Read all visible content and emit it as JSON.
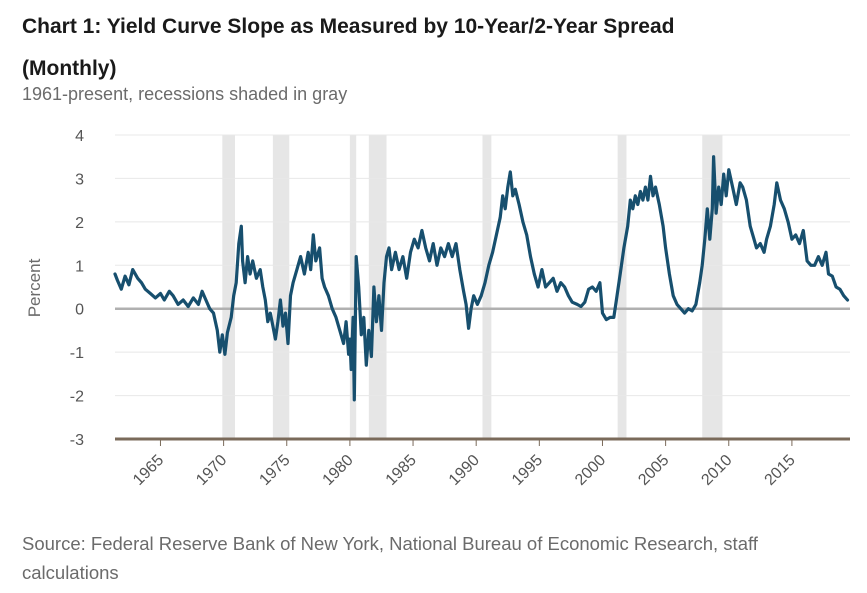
{
  "chart_data": {
    "type": "line",
    "title": "Chart 1: Yield Curve Slope as Measured by 10-Year/2-Year Spread (Monthly)",
    "subtitle": "1961-present, recessions shaded in gray",
    "xlabel": "",
    "ylabel": "Percent",
    "xlim": [
      1961.4,
      2019.6
    ],
    "ylim": [
      -3,
      4
    ],
    "yticks": [
      4,
      3,
      2,
      1,
      0,
      -1,
      -2,
      -3
    ],
    "xticks": [
      1965,
      1970,
      1975,
      1980,
      1985,
      1990,
      1995,
      2000,
      2005,
      2010,
      2015
    ],
    "recessions": [
      [
        1969.9,
        1970.9
      ],
      [
        1973.9,
        1975.2
      ],
      [
        1980.0,
        1980.5
      ],
      [
        1981.5,
        1982.9
      ],
      [
        1990.5,
        1991.2
      ],
      [
        2001.2,
        2001.9
      ],
      [
        2007.9,
        2009.5
      ]
    ],
    "colors": {
      "line": "#174f6e",
      "recession": "#e6e6e6",
      "zero": "#b0b0b0",
      "bottom": "#7a6a5a",
      "grid": "#e8e8e8"
    },
    "series": [
      {
        "name": "10-Year/2-Year Spread",
        "points": [
          [
            1961.4,
            0.8
          ],
          [
            1961.6,
            0.65
          ],
          [
            1961.9,
            0.45
          ],
          [
            1962.2,
            0.75
          ],
          [
            1962.5,
            0.55
          ],
          [
            1962.8,
            0.9
          ],
          [
            1963.2,
            0.7
          ],
          [
            1963.5,
            0.6
          ],
          [
            1963.8,
            0.45
          ],
          [
            1964.2,
            0.35
          ],
          [
            1964.6,
            0.25
          ],
          [
            1965.0,
            0.35
          ],
          [
            1965.3,
            0.2
          ],
          [
            1965.7,
            0.4
          ],
          [
            1966.0,
            0.3
          ],
          [
            1966.4,
            0.1
          ],
          [
            1966.8,
            0.2
          ],
          [
            1967.2,
            0.05
          ],
          [
            1967.6,
            0.25
          ],
          [
            1968.0,
            0.1
          ],
          [
            1968.3,
            0.4
          ],
          [
            1968.6,
            0.2
          ],
          [
            1968.9,
            0.0
          ],
          [
            1969.2,
            -0.1
          ],
          [
            1969.5,
            -0.5
          ],
          [
            1969.7,
            -1.0
          ],
          [
            1969.9,
            -0.6
          ],
          [
            1970.1,
            -1.05
          ],
          [
            1970.3,
            -0.55
          ],
          [
            1970.6,
            -0.2
          ],
          [
            1970.8,
            0.3
          ],
          [
            1971.0,
            0.6
          ],
          [
            1971.2,
            1.5
          ],
          [
            1971.4,
            1.9
          ],
          [
            1971.5,
            1.1
          ],
          [
            1971.7,
            0.6
          ],
          [
            1971.9,
            1.2
          ],
          [
            1972.1,
            0.8
          ],
          [
            1972.3,
            1.1
          ],
          [
            1972.6,
            0.7
          ],
          [
            1972.9,
            0.9
          ],
          [
            1973.1,
            0.5
          ],
          [
            1973.3,
            0.2
          ],
          [
            1973.5,
            -0.3
          ],
          [
            1973.7,
            -0.1
          ],
          [
            1973.9,
            -0.4
          ],
          [
            1974.1,
            -0.7
          ],
          [
            1974.3,
            -0.3
          ],
          [
            1974.5,
            0.2
          ],
          [
            1974.7,
            -0.4
          ],
          [
            1974.9,
            -0.1
          ],
          [
            1975.1,
            -0.8
          ],
          [
            1975.3,
            0.3
          ],
          [
            1975.5,
            0.6
          ],
          [
            1975.8,
            0.9
          ],
          [
            1976.1,
            1.2
          ],
          [
            1976.4,
            0.8
          ],
          [
            1976.7,
            1.3
          ],
          [
            1976.9,
            0.9
          ],
          [
            1977.1,
            1.7
          ],
          [
            1977.3,
            1.1
          ],
          [
            1977.6,
            1.4
          ],
          [
            1977.8,
            0.7
          ],
          [
            1978.0,
            0.5
          ],
          [
            1978.3,
            0.3
          ],
          [
            1978.6,
            0.0
          ],
          [
            1978.9,
            -0.2
          ],
          [
            1979.2,
            -0.5
          ],
          [
            1979.5,
            -0.8
          ],
          [
            1979.7,
            -0.3
          ],
          [
            1979.9,
            -1.05
          ],
          [
            1980.0,
            -0.7
          ],
          [
            1980.1,
            -1.4
          ],
          [
            1980.25,
            -0.2
          ],
          [
            1980.35,
            -2.1
          ],
          [
            1980.5,
            1.2
          ],
          [
            1980.7,
            0.5
          ],
          [
            1980.9,
            -0.6
          ],
          [
            1981.1,
            -0.2
          ],
          [
            1981.3,
            -1.3
          ],
          [
            1981.5,
            -0.5
          ],
          [
            1981.7,
            -1.1
          ],
          [
            1981.9,
            0.5
          ],
          [
            1982.1,
            -0.3
          ],
          [
            1982.3,
            0.3
          ],
          [
            1982.5,
            -0.5
          ],
          [
            1982.7,
            0.6
          ],
          [
            1982.9,
            1.2
          ],
          [
            1983.1,
            1.4
          ],
          [
            1983.3,
            0.9
          ],
          [
            1983.6,
            1.3
          ],
          [
            1983.9,
            0.9
          ],
          [
            1984.2,
            1.2
          ],
          [
            1984.5,
            0.7
          ],
          [
            1984.8,
            1.3
          ],
          [
            1985.1,
            1.6
          ],
          [
            1985.4,
            1.4
          ],
          [
            1985.7,
            1.8
          ],
          [
            1986.0,
            1.4
          ],
          [
            1986.3,
            1.1
          ],
          [
            1986.6,
            1.5
          ],
          [
            1986.9,
            1.0
          ],
          [
            1987.2,
            1.4
          ],
          [
            1987.5,
            1.2
          ],
          [
            1987.8,
            1.5
          ],
          [
            1988.1,
            1.2
          ],
          [
            1988.4,
            1.5
          ],
          [
            1988.7,
            0.9
          ],
          [
            1989.0,
            0.4
          ],
          [
            1989.2,
            0.1
          ],
          [
            1989.4,
            -0.45
          ],
          [
            1989.6,
            0.0
          ],
          [
            1989.8,
            0.3
          ],
          [
            1990.1,
            0.1
          ],
          [
            1990.4,
            0.3
          ],
          [
            1990.7,
            0.6
          ],
          [
            1991.0,
            1.0
          ],
          [
            1991.3,
            1.3
          ],
          [
            1991.6,
            1.7
          ],
          [
            1991.9,
            2.1
          ],
          [
            1992.1,
            2.6
          ],
          [
            1992.3,
            2.3
          ],
          [
            1992.5,
            2.8
          ],
          [
            1992.7,
            3.15
          ],
          [
            1992.9,
            2.6
          ],
          [
            1993.1,
            2.75
          ],
          [
            1993.4,
            2.4
          ],
          [
            1993.7,
            2.0
          ],
          [
            1994.0,
            1.7
          ],
          [
            1994.3,
            1.2
          ],
          [
            1994.6,
            0.8
          ],
          [
            1994.9,
            0.5
          ],
          [
            1995.2,
            0.9
          ],
          [
            1995.5,
            0.5
          ],
          [
            1995.8,
            0.6
          ],
          [
            1996.1,
            0.7
          ],
          [
            1996.4,
            0.4
          ],
          [
            1996.7,
            0.6
          ],
          [
            1997.0,
            0.5
          ],
          [
            1997.3,
            0.3
          ],
          [
            1997.6,
            0.15
          ],
          [
            1998.0,
            0.1
          ],
          [
            1998.3,
            0.05
          ],
          [
            1998.6,
            0.15
          ],
          [
            1998.9,
            0.45
          ],
          [
            1999.2,
            0.5
          ],
          [
            1999.5,
            0.4
          ],
          [
            1999.8,
            0.6
          ],
          [
            2000.0,
            -0.1
          ],
          [
            2000.3,
            -0.25
          ],
          [
            2000.6,
            -0.2
          ],
          [
            2000.9,
            -0.2
          ],
          [
            2001.1,
            0.2
          ],
          [
            2001.4,
            0.8
          ],
          [
            2001.7,
            1.4
          ],
          [
            2002.0,
            1.9
          ],
          [
            2002.2,
            2.5
          ],
          [
            2002.4,
            2.3
          ],
          [
            2002.6,
            2.6
          ],
          [
            2002.8,
            2.4
          ],
          [
            2003.0,
            2.7
          ],
          [
            2003.2,
            2.5
          ],
          [
            2003.4,
            2.8
          ],
          [
            2003.6,
            2.5
          ],
          [
            2003.8,
            3.05
          ],
          [
            2004.0,
            2.6
          ],
          [
            2004.2,
            2.8
          ],
          [
            2004.5,
            2.4
          ],
          [
            2004.8,
            1.9
          ],
          [
            2005.0,
            1.4
          ],
          [
            2005.3,
            0.8
          ],
          [
            2005.6,
            0.3
          ],
          [
            2005.9,
            0.1
          ],
          [
            2006.2,
            0.0
          ],
          [
            2006.5,
            -0.1
          ],
          [
            2006.8,
            0.0
          ],
          [
            2007.1,
            -0.05
          ],
          [
            2007.4,
            0.1
          ],
          [
            2007.7,
            0.6
          ],
          [
            2007.9,
            1.0
          ],
          [
            2008.1,
            1.6
          ],
          [
            2008.3,
            2.3
          ],
          [
            2008.5,
            1.6
          ],
          [
            2008.7,
            2.3
          ],
          [
            2008.8,
            3.5
          ],
          [
            2009.0,
            2.2
          ],
          [
            2009.2,
            2.8
          ],
          [
            2009.4,
            2.4
          ],
          [
            2009.6,
            3.1
          ],
          [
            2009.8,
            2.6
          ],
          [
            2010.0,
            3.2
          ],
          [
            2010.3,
            2.8
          ],
          [
            2010.6,
            2.4
          ],
          [
            2010.9,
            2.9
          ],
          [
            2011.1,
            2.8
          ],
          [
            2011.4,
            2.5
          ],
          [
            2011.7,
            1.9
          ],
          [
            2012.0,
            1.6
          ],
          [
            2012.2,
            1.4
          ],
          [
            2012.5,
            1.5
          ],
          [
            2012.8,
            1.3
          ],
          [
            2013.0,
            1.6
          ],
          [
            2013.3,
            1.9
          ],
          [
            2013.6,
            2.4
          ],
          [
            2013.8,
            2.9
          ],
          [
            2014.1,
            2.5
          ],
          [
            2014.4,
            2.3
          ],
          [
            2014.7,
            2.0
          ],
          [
            2015.0,
            1.6
          ],
          [
            2015.3,
            1.7
          ],
          [
            2015.6,
            1.5
          ],
          [
            2015.9,
            1.8
          ],
          [
            2016.2,
            1.1
          ],
          [
            2016.5,
            1.0
          ],
          [
            2016.8,
            1.0
          ],
          [
            2017.1,
            1.2
          ],
          [
            2017.4,
            1.0
          ],
          [
            2017.7,
            1.3
          ],
          [
            2017.9,
            0.8
          ],
          [
            2018.2,
            0.75
          ],
          [
            2018.5,
            0.5
          ],
          [
            2018.8,
            0.45
          ],
          [
            2019.1,
            0.3
          ],
          [
            2019.4,
            0.2
          ]
        ]
      }
    ]
  },
  "source": "Source: Federal Reserve Bank of New York, National Bureau of Economic Research, staff calculations"
}
